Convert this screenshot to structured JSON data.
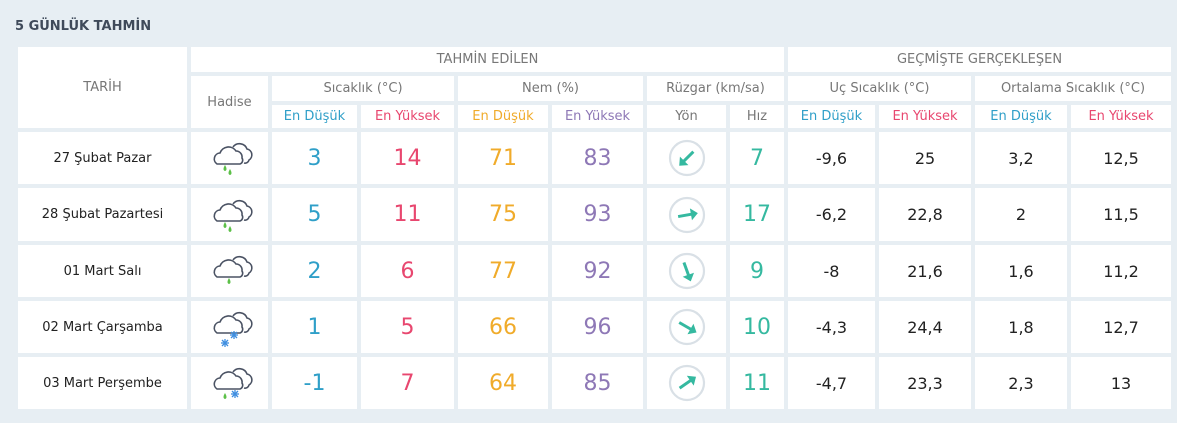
{
  "title": "5 GÜNLÜK TAHMİN",
  "headers": {
    "date": "TARİH",
    "forecast": "TAHMİN EDİLEN",
    "past": "GEÇMİŞTE GERÇEKLEŞEN",
    "event": "Hadise",
    "temp": "Sıcaklık (°C)",
    "humidity": "Nem (%)",
    "wind": "Rüzgar (km/sa)",
    "extreme": "Uç Sıcaklık (°C)",
    "average": "Ortalama Sıcaklık (°C)",
    "low": "En Düşük",
    "high": "En Yüksek",
    "dir": "Yön",
    "speed": "Hız"
  },
  "colors": {
    "low": "#2f9fc8",
    "high": "#e8476f",
    "hum_low": "#f0ab2a",
    "hum_high": "#8e78b6",
    "wind": "#35b9a0"
  },
  "rows": [
    {
      "date": "27 Şubat Pazar",
      "icon": "rain-cloud-icon",
      "t_lo": "3",
      "t_hi": "14",
      "h_lo": "71",
      "h_hi": "83",
      "wind_dir_deg": 225,
      "wind": "7",
      "x_lo": "-9,6",
      "x_hi": "25",
      "a_lo": "3,2",
      "a_hi": "12,5"
    },
    {
      "date": "28 Şubat Pazartesi",
      "icon": "rain-cloud-icon",
      "t_lo": "5",
      "t_hi": "11",
      "h_lo": "75",
      "h_hi": "93",
      "wind_dir_deg": 80,
      "wind": "17",
      "x_lo": "-6,2",
      "x_hi": "22,8",
      "a_lo": "2",
      "a_hi": "11,5"
    },
    {
      "date": "01 Mart Salı",
      "icon": "light-rain-cloud-icon",
      "t_lo": "2",
      "t_hi": "6",
      "h_lo": "77",
      "h_hi": "92",
      "wind_dir_deg": 160,
      "wind": "9",
      "x_lo": "-8",
      "x_hi": "21,6",
      "a_lo": "1,6",
      "a_hi": "11,2"
    },
    {
      "date": "02 Mart Çarşamba",
      "icon": "snow-cloud-icon",
      "t_lo": "1",
      "t_hi": "5",
      "h_lo": "66",
      "h_hi": "96",
      "wind_dir_deg": 120,
      "wind": "10",
      "x_lo": "-4,3",
      "x_hi": "24,4",
      "a_lo": "1,8",
      "a_hi": "12,7"
    },
    {
      "date": "03 Mart Perşembe",
      "icon": "sleet-cloud-icon",
      "t_lo": "-1",
      "t_hi": "7",
      "h_lo": "64",
      "h_hi": "85",
      "wind_dir_deg": 55,
      "wind": "11",
      "x_lo": "-4,7",
      "x_hi": "23,3",
      "a_lo": "2,3",
      "a_hi": "13"
    }
  ]
}
